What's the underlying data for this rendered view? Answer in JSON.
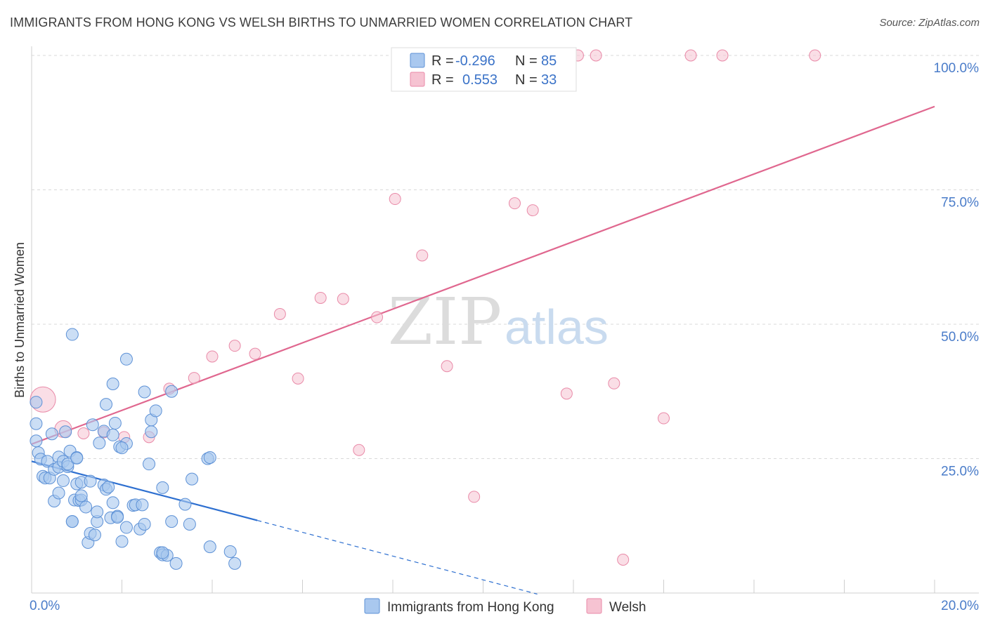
{
  "header": {
    "title": "IMMIGRANTS FROM HONG KONG VS WELSH BIRTHS TO UNMARRIED WOMEN CORRELATION CHART",
    "source": "Source: ZipAtlas.com"
  },
  "watermark": {
    "zip": "ZIP",
    "atlas": "atlas"
  },
  "colors": {
    "blue_fill": "#a9c8ef",
    "blue_stroke": "#5d91d6",
    "blue_line": "#2d6fd0",
    "pink_fill": "#f6c3d2",
    "pink_stroke": "#e98aa8",
    "pink_line": "#e0678f",
    "tick_text": "#4a7cc9",
    "grid": "#d9d9d9"
  },
  "legend_top": {
    "rows": [
      {
        "r_label": "R = ",
        "r_value": "-0.296",
        "n_label": "N = ",
        "n_value": "85"
      },
      {
        "r_label": "R = ",
        "r_value": "0.553",
        "n_label": "N = ",
        "n_value": "33"
      }
    ]
  },
  "chart_data": {
    "type": "scatter",
    "title": "IMMIGRANTS FROM HONG KONG VS WELSH BIRTHS TO UNMARRIED WOMEN CORRELATION CHART",
    "xlabel": "",
    "ylabel": "Births to Unmarried Women",
    "xlim": [
      0,
      20
    ],
    "ylim": [
      0,
      100
    ],
    "x_tick_labels": [
      "0.0%",
      "20.0%"
    ],
    "y_tick_labels": [
      "25.0%",
      "50.0%",
      "75.0%",
      "100.0%"
    ],
    "y_ticks": [
      25,
      50,
      75,
      100
    ],
    "grid": true,
    "legend_position": "bottom-center",
    "series": [
      {
        "name": "Immigrants from Hong Kong",
        "r": -0.296,
        "n": 85,
        "trend": {
          "x0": 0,
          "y0": 24.5,
          "x1": 5,
          "y1": 13.5,
          "dashed_to_x": 11.2,
          "dashed_to_y": -0.2
        },
        "points": [
          [
            0.1,
            35.5
          ],
          [
            0.1,
            31.5
          ],
          [
            0.1,
            28.3
          ],
          [
            0.15,
            26.1
          ],
          [
            0.2,
            24.9
          ],
          [
            0.25,
            21.7
          ],
          [
            0.3,
            21.4
          ],
          [
            0.35,
            24.5
          ],
          [
            0.4,
            21.4
          ],
          [
            0.45,
            29.6
          ],
          [
            0.5,
            23.0
          ],
          [
            0.5,
            17.1
          ],
          [
            0.6,
            25.3
          ],
          [
            0.6,
            23.4
          ],
          [
            0.6,
            18.6
          ],
          [
            0.7,
            24.5
          ],
          [
            0.7,
            20.9
          ],
          [
            0.75,
            30.0
          ],
          [
            0.8,
            23.5
          ],
          [
            0.8,
            24.0
          ],
          [
            0.85,
            26.4
          ],
          [
            0.9,
            13.3
          ],
          [
            0.9,
            13.3
          ],
          [
            0.9,
            48.1
          ],
          [
            0.95,
            17.3
          ],
          [
            1.0,
            25.2
          ],
          [
            1.0,
            20.3
          ],
          [
            1.05,
            17.2
          ],
          [
            1.1,
            17.3
          ],
          [
            1.1,
            18.1
          ],
          [
            1.1,
            20.6
          ],
          [
            1.2,
            16.0
          ],
          [
            1.25,
            9.4
          ],
          [
            1.3,
            11.1
          ],
          [
            1.3,
            20.8
          ],
          [
            1.35,
            31.3
          ],
          [
            1.4,
            10.8
          ],
          [
            1.45,
            13.3
          ],
          [
            1.45,
            15.1
          ],
          [
            1.5,
            27.9
          ],
          [
            1.6,
            30.1
          ],
          [
            1.6,
            20.1
          ],
          [
            1.65,
            35.1
          ],
          [
            1.65,
            19.3
          ],
          [
            1.7,
            19.7
          ],
          [
            1.75,
            14.0
          ],
          [
            1.8,
            29.4
          ],
          [
            1.8,
            38.9
          ],
          [
            1.8,
            16.8
          ],
          [
            1.85,
            31.6
          ],
          [
            1.9,
            14.3
          ],
          [
            1.9,
            14.1
          ],
          [
            1.95,
            27.2
          ],
          [
            2.0,
            9.6
          ],
          [
            2.1,
            12.2
          ],
          [
            2.1,
            27.8
          ],
          [
            2.1,
            43.5
          ],
          [
            2.25,
            16.3
          ],
          [
            2.3,
            16.4
          ],
          [
            2.4,
            11.9
          ],
          [
            2.45,
            16.4
          ],
          [
            2.5,
            37.4
          ],
          [
            2.5,
            12.8
          ],
          [
            2.6,
            24.0
          ],
          [
            2.65,
            30.0
          ],
          [
            2.65,
            32.2
          ],
          [
            2.75,
            33.9
          ],
          [
            2.85,
            7.5
          ],
          [
            2.9,
            7.1
          ],
          [
            2.9,
            19.6
          ],
          [
            3.0,
            7.0
          ],
          [
            3.1,
            13.3
          ],
          [
            3.1,
            37.5
          ],
          [
            3.2,
            5.5
          ],
          [
            3.4,
            16.5
          ],
          [
            3.5,
            12.8
          ],
          [
            3.55,
            21.2
          ],
          [
            3.9,
            25.0
          ],
          [
            3.95,
            25.2
          ],
          [
            3.95,
            8.6
          ],
          [
            4.4,
            7.7
          ],
          [
            4.5,
            5.5
          ],
          [
            2.9,
            7.5
          ],
          [
            1.0,
            25.1
          ],
          [
            2.0,
            27.0
          ]
        ]
      },
      {
        "name": "Welsh",
        "r": 0.553,
        "n": 33,
        "trend": {
          "x0": 0,
          "y0": 27.7,
          "x1": 20,
          "y1": 90.5
        },
        "points": [
          [
            0.25,
            36.0
          ],
          [
            0.7,
            30.5
          ],
          [
            1.15,
            29.7
          ],
          [
            1.6,
            29.9
          ],
          [
            2.05,
            29.0
          ],
          [
            2.6,
            29.0
          ],
          [
            3.05,
            38.0
          ],
          [
            3.6,
            40.0
          ],
          [
            4.0,
            44.0
          ],
          [
            4.5,
            46.0
          ],
          [
            4.95,
            44.5
          ],
          [
            5.5,
            51.9
          ],
          [
            5.9,
            39.9
          ],
          [
            6.4,
            54.9
          ],
          [
            6.9,
            54.7
          ],
          [
            7.25,
            26.6
          ],
          [
            7.65,
            51.3
          ],
          [
            8.05,
            73.3
          ],
          [
            8.65,
            62.8
          ],
          [
            9.2,
            42.2
          ],
          [
            9.8,
            17.9
          ],
          [
            10.4,
            100.0
          ],
          [
            10.7,
            72.5
          ],
          [
            11.1,
            71.2
          ],
          [
            11.85,
            37.1
          ],
          [
            12.1,
            100.0
          ],
          [
            12.5,
            100.0
          ],
          [
            12.9,
            39.0
          ],
          [
            13.1,
            6.2
          ],
          [
            14.0,
            32.5
          ],
          [
            14.6,
            100.0
          ],
          [
            15.3,
            100.0
          ],
          [
            17.35,
            100.0
          ]
        ]
      }
    ]
  }
}
